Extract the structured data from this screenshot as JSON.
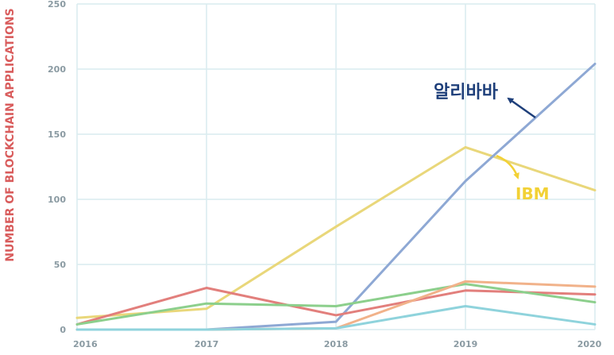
{
  "chart_data": {
    "type": "line",
    "title": "",
    "xlabel": "",
    "ylabel": "NUMBER OF BLOCKCHAIN APPLICATIONS",
    "x": [
      "2016",
      "2017",
      "2018",
      "2019",
      "2020"
    ],
    "xlim": [
      2016,
      2020
    ],
    "ylim": [
      0,
      250
    ],
    "y_ticks": [
      0,
      50,
      100,
      150,
      200,
      250
    ],
    "grid": true,
    "series": [
      {
        "color": "#e9d77a",
        "values": [
          9,
          16,
          79,
          140,
          107
        ]
      },
      {
        "color": "#8ea8d4",
        "values": [
          0,
          0,
          6,
          114,
          204
        ]
      },
      {
        "color": "#e27f7c",
        "values": [
          4,
          32,
          11,
          30,
          27
        ]
      },
      {
        "color": "#8ccf8c",
        "values": [
          4,
          20,
          18,
          35,
          21
        ]
      },
      {
        "color": "#f1b28a",
        "values": [
          0,
          0,
          1,
          37,
          33
        ]
      },
      {
        "color": "#8fd3dc",
        "values": [
          0,
          0,
          1,
          18,
          4
        ]
      }
    ],
    "annotations": [
      {
        "text": "알리바바",
        "color": "#1e3f7a",
        "series_index": 1
      },
      {
        "text": "IBM",
        "color": "#f2d136",
        "series_index": 0
      }
    ]
  },
  "colors": {
    "grid": "#d9ecef",
    "tick": "#8a9aa2",
    "ylabel": "#d95c5c"
  }
}
